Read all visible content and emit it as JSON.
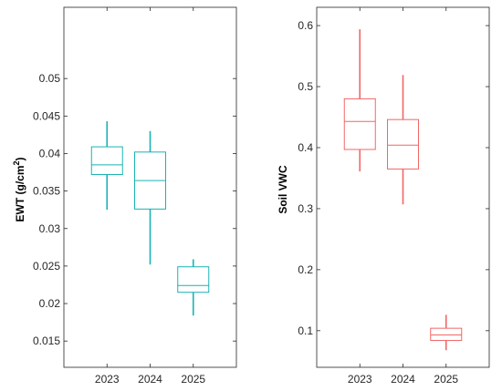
{
  "chart_data": [
    {
      "type": "box",
      "categories": [
        "2023",
        "2024",
        "2025"
      ],
      "ylabel": "EWT (g/cm",
      "ylabel_sup": "2",
      "ylabel_close": ")",
      "ylim": [
        0.0115,
        0.0595
      ],
      "yticks": [
        0.015,
        0.02,
        0.025,
        0.03,
        0.035,
        0.04,
        0.045,
        0.05
      ],
      "ytick_labels": [
        "0.015",
        "0.02",
        "0.025",
        "0.03",
        "0.035",
        "0.04",
        "0.045",
        "0.05"
      ],
      "color": "#1ab2b2",
      "boxes": [
        {
          "category": "2023",
          "min": 0.0325,
          "q1": 0.0372,
          "median": 0.0385,
          "q3": 0.0409,
          "max": 0.0443
        },
        {
          "category": "2024",
          "min": 0.0252,
          "q1": 0.0326,
          "median": 0.0364,
          "q3": 0.0402,
          "max": 0.043
        },
        {
          "category": "2025",
          "min": 0.0184,
          "q1": 0.0215,
          "median": 0.0224,
          "q3": 0.0249,
          "max": 0.0259
        }
      ]
    },
    {
      "type": "box",
      "categories": [
        "2023",
        "2024",
        "2025"
      ],
      "ylabel": "Soil VWC",
      "ylim": [
        0.04,
        0.63
      ],
      "yticks": [
        0.1,
        0.2,
        0.3,
        0.4,
        0.5,
        0.6
      ],
      "ytick_labels": [
        "0.1",
        "0.2",
        "0.3",
        "0.4",
        "0.5",
        "0.6"
      ],
      "color": "#f26666",
      "boxes": [
        {
          "category": "2023",
          "min": 0.361,
          "q1": 0.397,
          "median": 0.443,
          "q3": 0.48,
          "max": 0.594
        },
        {
          "category": "2024",
          "min": 0.307,
          "q1": 0.365,
          "median": 0.404,
          "q3": 0.446,
          "max": 0.519
        },
        {
          "category": "2025",
          "min": 0.068,
          "q1": 0.084,
          "median": 0.093,
          "q3": 0.104,
          "max": 0.126
        }
      ]
    }
  ]
}
